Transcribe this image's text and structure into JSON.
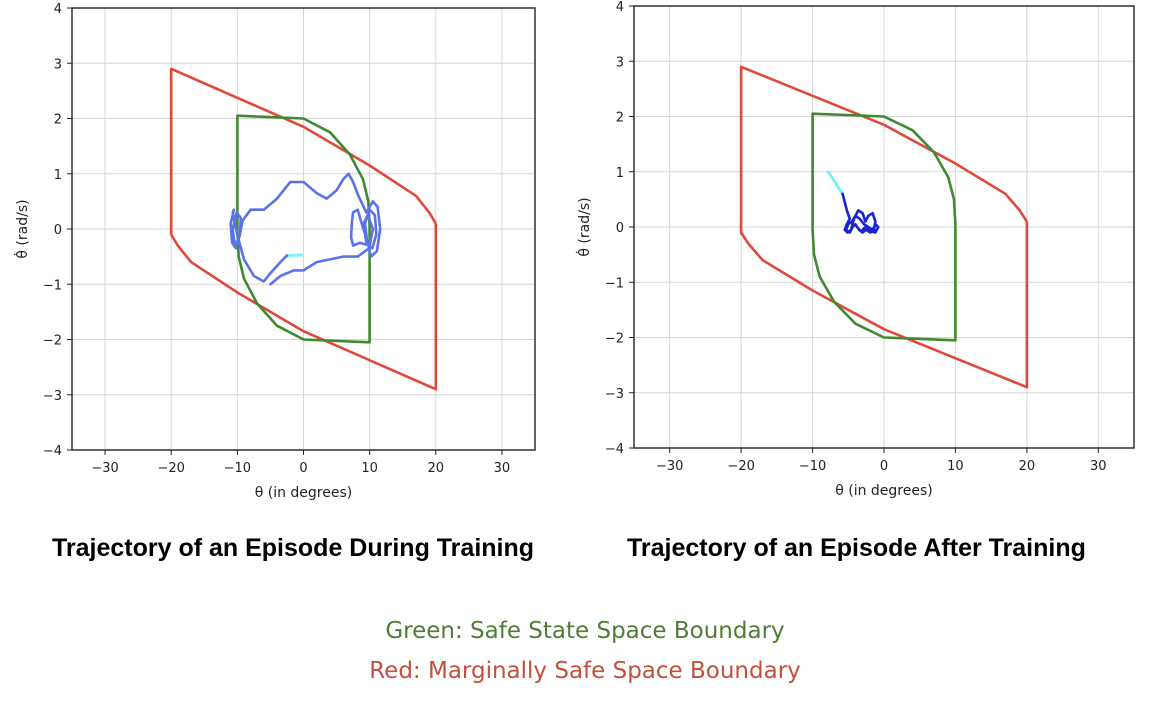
{
  "chart_data": [
    {
      "type": "line",
      "xlabel": "θ (in degrees)",
      "ylabel": "θ̇ (rad/s)",
      "xlim": [
        -35,
        35
      ],
      "ylim": [
        -4,
        4
      ],
      "xticks": [
        -30,
        -20,
        -10,
        0,
        10,
        20,
        30
      ],
      "yticks": [
        -4,
        -3,
        -2,
        -1,
        0,
        1,
        2,
        3,
        4
      ],
      "grid": true,
      "colors": {
        "safe": "#3f8a2f",
        "marginal": "#e0493a",
        "trajectory": "#5b72e8",
        "start": "#7ef0f5"
      },
      "boundaries": {
        "safe": [
          [
            10,
            0.05
          ],
          [
            9.8,
            0.5
          ],
          [
            9,
            0.9
          ],
          [
            7,
            1.35
          ],
          [
            4,
            1.75
          ],
          [
            0,
            2.0
          ],
          [
            -10,
            2.05
          ],
          [
            -10,
            -0.05
          ],
          [
            -9.8,
            -0.5
          ],
          [
            -9,
            -0.9
          ],
          [
            -7,
            -1.35
          ],
          [
            -4,
            -1.75
          ],
          [
            0,
            -2.0
          ],
          [
            10,
            -2.05
          ],
          [
            10,
            0.05
          ]
        ],
        "marginal": [
          [
            20,
            0.1
          ],
          [
            19,
            0.3
          ],
          [
            17,
            0.6
          ],
          [
            10,
            1.15
          ],
          [
            0,
            1.85
          ],
          [
            -20,
            2.9
          ],
          [
            -20,
            -0.1
          ],
          [
            -19,
            -0.3
          ],
          [
            -17,
            -0.6
          ],
          [
            -10,
            -1.15
          ],
          [
            0,
            -1.85
          ],
          [
            20,
            -2.9
          ],
          [
            20,
            0.1
          ]
        ]
      },
      "trajectory_start": [
        [
          -2.5,
          -0.48
        ],
        [
          -0.3,
          -0.47
        ]
      ],
      "trajectory": [
        [
          -2.5,
          -0.48
        ],
        [
          -3.5,
          -0.6
        ],
        [
          -5,
          -0.8
        ],
        [
          -6,
          -0.95
        ],
        [
          -7.5,
          -0.85
        ],
        [
          -9,
          -0.55
        ],
        [
          -9.8,
          -0.2
        ],
        [
          -10.3,
          0.05
        ],
        [
          -10.7,
          0.3
        ],
        [
          -10.5,
          0.35
        ],
        [
          -11,
          0.1
        ],
        [
          -10.8,
          -0.25
        ],
        [
          -10.2,
          -0.35
        ],
        [
          -9.6,
          -0.1
        ],
        [
          -9.5,
          0.2
        ],
        [
          -10.1,
          0.3
        ],
        [
          -10.7,
          0
        ],
        [
          -10.4,
          -0.3
        ],
        [
          -9.7,
          -0.15
        ],
        [
          -9.2,
          0.15
        ],
        [
          -8,
          0.35
        ],
        [
          -6,
          0.35
        ],
        [
          -4,
          0.55
        ],
        [
          -2,
          0.85
        ],
        [
          0,
          0.85
        ],
        [
          2,
          0.65
        ],
        [
          3.5,
          0.55
        ],
        [
          5,
          0.7
        ],
        [
          6,
          0.9
        ],
        [
          6.8,
          1.0
        ],
        [
          7.5,
          0.85
        ],
        [
          8.3,
          0.6
        ],
        [
          9.5,
          0.3
        ],
        [
          10.5,
          0.5
        ],
        [
          11.2,
          0.4
        ],
        [
          11.6,
          0
        ],
        [
          11.1,
          -0.4
        ],
        [
          10.2,
          -0.5
        ],
        [
          9.6,
          -0.2
        ],
        [
          9.3,
          0.1
        ],
        [
          10,
          0.35
        ],
        [
          10.8,
          0.25
        ],
        [
          11,
          -0.1
        ],
        [
          10.4,
          -0.35
        ],
        [
          9.5,
          -0.25
        ],
        [
          9.1,
          0.1
        ],
        [
          9.7,
          0.25
        ],
        [
          10.5,
          0
        ],
        [
          10,
          -0.3
        ],
        [
          8.5,
          -0.25
        ],
        [
          7.5,
          -0.3
        ],
        [
          7.2,
          -0.15
        ],
        [
          7.3,
          0.1
        ],
        [
          7.5,
          0.3
        ],
        [
          8.2,
          0.35
        ],
        [
          8.8,
          0.1
        ],
        [
          9.6,
          -0.2
        ],
        [
          9.9,
          -0.35
        ],
        [
          8.2,
          -0.5
        ],
        [
          6,
          -0.5
        ],
        [
          4,
          -0.55
        ],
        [
          2,
          -0.6
        ],
        [
          0,
          -0.75
        ],
        [
          -1.5,
          -0.75
        ],
        [
          -3.5,
          -0.85
        ],
        [
          -5,
          -1.0
        ]
      ]
    },
    {
      "type": "line",
      "xlabel": "θ (in degrees)",
      "ylabel": "θ̇ (rad/s)",
      "xlim": [
        -35,
        35
      ],
      "ylim": [
        -4,
        4
      ],
      "xticks": [
        -30,
        -20,
        -10,
        0,
        10,
        20,
        30
      ],
      "yticks": [
        -4,
        -3,
        -2,
        -1,
        0,
        1,
        2,
        3,
        4
      ],
      "grid": true,
      "colors": {
        "safe": "#3f8a2f",
        "marginal": "#e0493a",
        "trajectory": "#1a25d0",
        "start": "#7ef0f5"
      },
      "boundaries": {
        "safe": [
          [
            10,
            0.05
          ],
          [
            9.8,
            0.5
          ],
          [
            9,
            0.9
          ],
          [
            7,
            1.35
          ],
          [
            4,
            1.75
          ],
          [
            0,
            2.0
          ],
          [
            -10,
            2.05
          ],
          [
            -10,
            -0.05
          ],
          [
            -9.8,
            -0.5
          ],
          [
            -9,
            -0.9
          ],
          [
            -7,
            -1.35
          ],
          [
            -4,
            -1.75
          ],
          [
            0,
            -2.0
          ],
          [
            10,
            -2.05
          ],
          [
            10,
            0.05
          ]
        ],
        "marginal": [
          [
            20,
            0.1
          ],
          [
            19,
            0.3
          ],
          [
            17,
            0.6
          ],
          [
            10,
            1.15
          ],
          [
            0,
            1.85
          ],
          [
            -20,
            2.9
          ],
          [
            -20,
            -0.1
          ],
          [
            -19,
            -0.3
          ],
          [
            -17,
            -0.6
          ],
          [
            -10,
            -1.15
          ],
          [
            0,
            -1.85
          ],
          [
            20,
            -2.9
          ],
          [
            20,
            0.1
          ]
        ]
      },
      "trajectory_start": [
        [
          -7.8,
          1.0
        ],
        [
          -5.8,
          0.6
        ]
      ],
      "trajectory": [
        [
          -5.8,
          0.6
        ],
        [
          -5.2,
          0.3
        ],
        [
          -4.8,
          0.15
        ],
        [
          -5.2,
          0.05
        ],
        [
          -5.5,
          -0.05
        ],
        [
          -5.1,
          -0.1
        ],
        [
          -4.6,
          -0.05
        ],
        [
          -4.2,
          0.15
        ],
        [
          -3.6,
          0.3
        ],
        [
          -3.0,
          0.25
        ],
        [
          -2.6,
          0.1
        ],
        [
          -2.2,
          0.2
        ],
        [
          -1.6,
          0.25
        ],
        [
          -1.2,
          0.1
        ],
        [
          -1.4,
          -0.05
        ],
        [
          -1.9,
          -0.1
        ],
        [
          -2.5,
          -0.05
        ],
        [
          -3.0,
          -0.1
        ],
        [
          -3.5,
          -0.05
        ],
        [
          -4.0,
          0.05
        ],
        [
          -4.4,
          0.0
        ],
        [
          -4.8,
          -0.1
        ],
        [
          -5.3,
          -0.05
        ],
        [
          -5.0,
          0.05
        ],
        [
          -4.5,
          0.1
        ],
        [
          -4.0,
          0.2
        ],
        [
          -3.4,
          0.15
        ],
        [
          -2.8,
          0.05
        ],
        [
          -2.2,
          0.0
        ],
        [
          -1.6,
          -0.05
        ],
        [
          -1.2,
          0.05
        ],
        [
          -0.8,
          0.0
        ],
        [
          -1.2,
          -0.1
        ],
        [
          -1.8,
          -0.08
        ],
        [
          -2.6,
          0.0
        ],
        [
          -3.2,
          -0.08
        ],
        [
          -3.8,
          0.0
        ]
      ]
    }
  ],
  "captions": {
    "left": "Trajectory of an Episode During Training",
    "right": "Trajectory of an Episode After Training"
  },
  "legend": {
    "green": "Green: Safe State Space Boundary",
    "red": "Red: Marginally Safe Space Boundary"
  }
}
